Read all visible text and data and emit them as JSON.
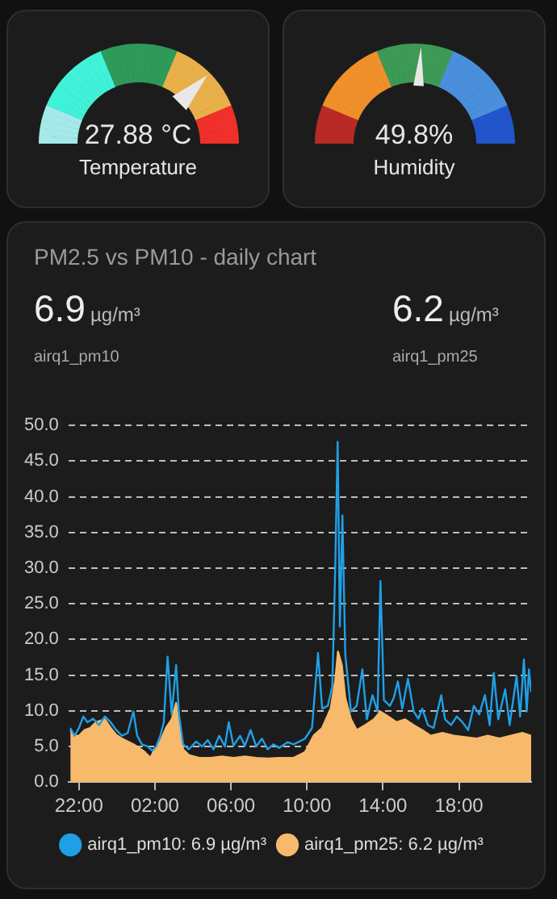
{
  "chart_data": [
    {
      "type": "other",
      "title": "Temperature",
      "annotations": [
        "27.88 °C"
      ]
    },
    {
      "type": "other",
      "title": "Humidity",
      "annotations": [
        "49.8%"
      ]
    },
    {
      "type": "area",
      "title": "PM2.5 vs PM10 - daily chart",
      "annotations": [
        "6.9",
        "µg/m³",
        "airq1_pm10",
        "6.2",
        "µg/m³",
        "airq1_pm25"
      ],
      "xlim": [
        "--01-01T21:27",
        "--01-02T21:48"
      ],
      "xticks": [
        {
          "value": "--01-01T22:00",
          "label": "22:00"
        },
        {
          "value": "--01-02T02:00",
          "label": "02:00"
        },
        {
          "value": "--01-02T06:00",
          "label": "06:00"
        },
        {
          "value": "--01-02T10:00",
          "label": "10:00"
        },
        {
          "value": "--01-02T14:00",
          "label": "14:00"
        },
        {
          "value": "--01-02T18:00",
          "label": "18:00"
        }
      ],
      "ylim": [
        0,
        50
      ],
      "yticks": [
        {
          "value": 0,
          "label": "0.0"
        },
        {
          "value": 5,
          "label": "5.0"
        },
        {
          "value": 10,
          "label": "10.0"
        },
        {
          "value": 15,
          "label": "15.0"
        },
        {
          "value": 20,
          "label": "20.0"
        },
        {
          "value": 25,
          "label": "25.0"
        },
        {
          "value": 30,
          "label": "30.0"
        },
        {
          "value": 35,
          "label": "35.0"
        },
        {
          "value": 40,
          "label": "40.0"
        },
        {
          "value": 45,
          "label": "45.0"
        },
        {
          "value": 50,
          "label": "50.0"
        }
      ],
      "grid": "y",
      "legend": "bottom",
      "marker": "none",
      "line_style": "solid",
      "series": [
        {
          "name": "airq1_pm10: 6.9 µg/m³",
          "type": "line",
          "color": "#1fa0e6",
          "x": [
            "--01-01T21:33",
            "--01-01T21:46",
            "--01-01T22:00",
            "--01-01T22:14",
            "--01-01T22:27",
            "--01-01T22:45",
            "--01-01T23:03",
            "--01-01T23:22",
            "--01-01T23:40",
            "--01-01T23:58",
            "--01-02T00:16",
            "--01-02T00:34",
            "--01-02T00:52",
            "--01-02T01:04",
            "--01-02T01:19",
            "--01-02T01:37",
            "--01-02T01:52",
            "--01-02T02:04",
            "--01-02T02:17",
            "--01-02T02:28",
            "--01-02T02:40",
            "--01-02T02:53",
            "--01-02T03:07",
            "--01-02T03:16",
            "--01-02T03:29",
            "--01-02T03:47",
            "--01-02T04:10",
            "--01-02T04:29",
            "--01-02T04:47",
            "--01-02T05:05",
            "--01-02T05:23",
            "--01-02T05:41",
            "--01-02T05:53",
            "--01-02T06:08",
            "--01-02T06:29",
            "--01-02T06:44",
            "--01-02T07:02",
            "--01-02T07:20",
            "--01-02T07:38",
            "--01-02T07:56",
            "--01-02T08:14",
            "--01-02T08:32",
            "--01-02T08:59",
            "--01-02T09:18",
            "--01-02T09:54",
            "--01-02T10:16",
            "--01-02T10:35",
            "--01-02T10:48",
            "--01-02T11:06",
            "--01-02T11:20",
            "--01-02T11:29",
            "--01-02T11:37",
            "--01-02T11:44",
            "--01-02T11:52",
            "--01-02T12:01",
            "--01-02T12:19",
            "--01-02T12:37",
            "--01-02T12:55",
            "--01-02T13:09",
            "--01-02T13:27",
            "--01-02T13:43",
            "--01-02T13:52",
            "--01-02T14:03",
            "--01-02T14:22",
            "--01-02T14:34",
            "--01-02T14:47",
            "--01-02T15:01",
            "--01-02T15:19",
            "--01-02T15:37",
            "--01-02T15:52",
            "--01-02T16:04",
            "--01-02T16:22",
            "--01-02T16:40",
            "--01-02T17:04",
            "--01-02T17:16",
            "--01-02T17:35",
            "--01-02T17:53",
            "--01-02T18:11",
            "--01-02T18:29",
            "--01-02T18:47",
            "--01-02T19:04",
            "--01-02T19:22",
            "--01-02T19:37",
            "--01-02T19:50",
            "--01-02T20:04",
            "--01-02T20:26",
            "--01-02T20:40",
            "--01-02T21:02",
            "--01-02T21:13",
            "--01-02T21:25",
            "--01-02T21:34",
            "--01-02T21:41",
            "--01-02T21:48"
          ],
          "values": [
            7.6,
            6.5,
            7.6,
            9.2,
            8.4,
            8.9,
            8.0,
            9.2,
            8.4,
            7.3,
            6.5,
            6.9,
            9.9,
            6.5,
            5.3,
            5.0,
            4.4,
            5.0,
            6.5,
            8.4,
            17.6,
            9.5,
            16.4,
            9.5,
            5.3,
            4.6,
            5.7,
            5.0,
            5.9,
            4.6,
            6.5,
            5.0,
            8.4,
            5.1,
            6.5,
            5.1,
            7.3,
            5.0,
            6.1,
            4.6,
            5.3,
            4.8,
            5.6,
            5.3,
            6.1,
            7.6,
            18.1,
            10.3,
            10.7,
            13.4,
            29.4,
            47.7,
            21.8,
            37.4,
            17.9,
            9.9,
            10.7,
            15.8,
            8.8,
            12.2,
            9.9,
            28.2,
            11.5,
            10.7,
            11.8,
            14.1,
            10.3,
            14.5,
            9.9,
            8.9,
            10.3,
            8.0,
            7.6,
            12.2,
            8.8,
            8.0,
            9.2,
            8.4,
            7.3,
            10.7,
            9.5,
            12.2,
            8.0,
            15.3,
            8.8,
            13.0,
            8.0,
            14.9,
            9.2,
            17.2,
            9.9,
            15.8,
            12.6
          ]
        },
        {
          "name": "airq1_pm25: 6.2 µg/m³",
          "type": "area",
          "color": "#f7b96b",
          "x": [
            "--01-01T21:33",
            "--01-01T21:46",
            "--01-01T22:00",
            "--01-01T22:18",
            "--01-01T22:36",
            "--01-01T22:54",
            "--01-01T23:22",
            "--01-01T23:40",
            "--01-01T23:58",
            "--01-02T00:16",
            "--01-02T00:34",
            "--01-02T00:52",
            "--01-02T01:10",
            "--01-02T01:28",
            "--01-02T01:46",
            "--01-02T01:59",
            "--01-02T02:17",
            "--01-02T02:35",
            "--01-02T02:53",
            "--01-02T03:07",
            "--01-02T03:16",
            "--01-02T03:29",
            "--01-02T03:47",
            "--01-02T04:20",
            "--01-02T04:56",
            "--01-02T05:32",
            "--01-02T06:08",
            "--01-02T06:44",
            "--01-02T07:20",
            "--01-02T07:56",
            "--01-02T08:32",
            "--01-02T09:18",
            "--01-02T09:54",
            "--01-02T10:21",
            "--01-02T10:48",
            "--01-02T11:15",
            "--01-02T11:29",
            "--01-02T11:38",
            "--01-02T11:50",
            "--01-02T12:01",
            "--01-02T12:19",
            "--01-02T12:37",
            "--01-02T13:04",
            "--01-02T13:31",
            "--01-02T13:52",
            "--01-02T14:16",
            "--01-02T14:43",
            "--01-02T15:10",
            "--01-02T15:37",
            "--01-02T16:04",
            "--01-02T16:31",
            "--01-02T17:08",
            "--01-02T17:44",
            "--01-02T18:20",
            "--01-02T18:56",
            "--01-02T19:31",
            "--01-02T20:08",
            "--01-02T20:44",
            "--01-02T21:20",
            "--01-02T21:48"
          ],
          "values": [
            7.3,
            6.5,
            6.5,
            7.3,
            7.6,
            8.4,
            8.8,
            7.6,
            6.6,
            6.1,
            5.7,
            5.3,
            4.8,
            4.2,
            3.4,
            4.6,
            5.7,
            7.6,
            8.8,
            11.1,
            8.0,
            4.6,
            3.8,
            3.4,
            3.4,
            3.6,
            3.4,
            3.6,
            3.4,
            3.3,
            3.4,
            3.4,
            4.2,
            6.5,
            7.6,
            10.3,
            14.1,
            18.3,
            16.4,
            11.8,
            8.8,
            7.3,
            8.0,
            8.8,
            9.9,
            9.2,
            8.4,
            8.8,
            8.0,
            7.3,
            6.5,
            6.9,
            6.5,
            6.3,
            6.1,
            6.5,
            6.1,
            6.5,
            6.9,
            6.5
          ]
        }
      ]
    }
  ]
}
